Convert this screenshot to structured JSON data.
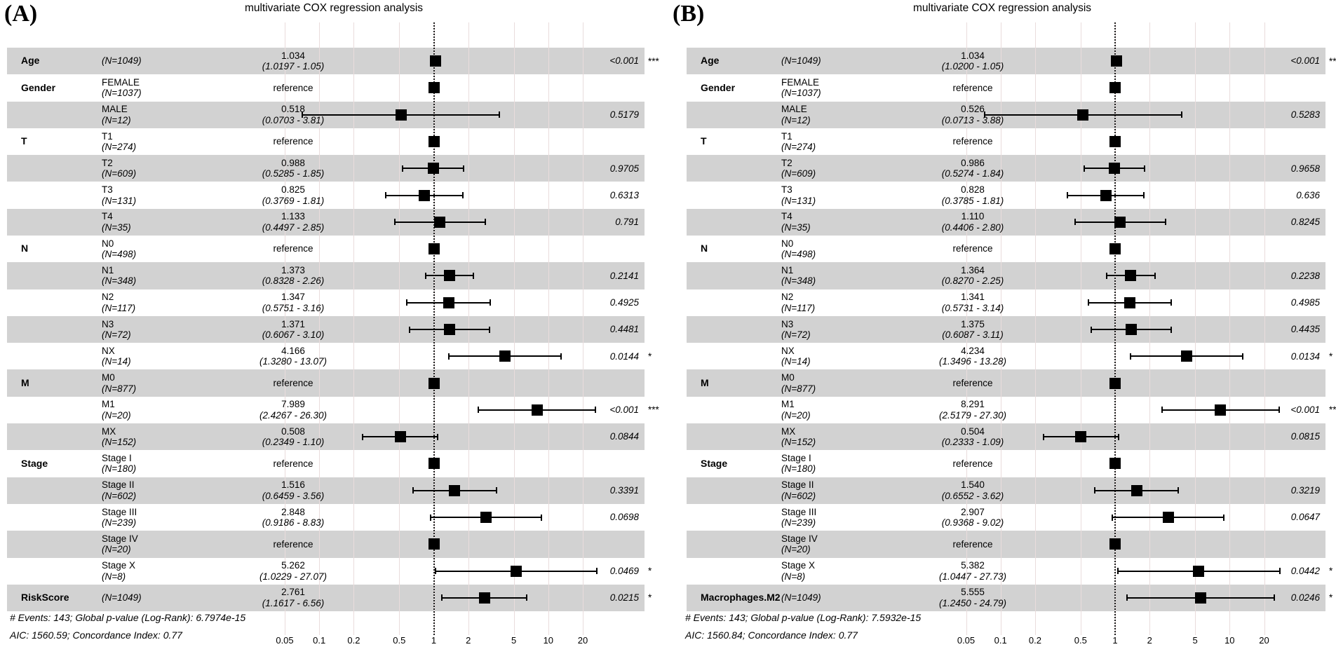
{
  "colors": {
    "row_shade": "#d2d2d2",
    "grid_line": "#e9dcdc",
    "marker": "#000000",
    "reference_line_color": "#1b1b1b",
    "background": "#ffffff",
    "text": "#000000"
  },
  "chart_data": [
    {
      "type": "forest",
      "panel_label": "(A)",
      "title": "multivariate COX regression analysis",
      "x_scale": "log",
      "x_range": [
        0.05,
        20
      ],
      "x_ticks": [
        "0.05",
        "0.1",
        "0.2",
        "0.5",
        "1",
        "2",
        "5",
        "10",
        "20"
      ],
      "reference_line": 1,
      "footer": [
        "# Events: 143; Global p-value (Log-Rank): 6.7974e-15",
        "AIC: 1560.59; Concordance Index: 0.77"
      ],
      "rows": [
        {
          "variable": "Age",
          "level": "",
          "n": "(N=1049)",
          "est_text": "1.034",
          "ci_text": "(1.0197 - 1.05)",
          "est": 1.034,
          "lo": 1.0197,
          "hi": 1.05,
          "p": "<0.001",
          "stars": "***",
          "reference": false,
          "shaded": true
        },
        {
          "variable": "Gender",
          "level": "FEMALE",
          "n": "(N=1037)",
          "est_text": "reference",
          "ci_text": "",
          "est": 1,
          "lo": null,
          "hi": null,
          "p": "",
          "stars": "",
          "reference": true,
          "shaded": false
        },
        {
          "variable": "",
          "level": "MALE",
          "n": "(N=12)",
          "est_text": "0.518",
          "ci_text": "(0.0703 - 3.81)",
          "est": 0.518,
          "lo": 0.0703,
          "hi": 3.81,
          "p": "0.5179",
          "stars": "",
          "reference": false,
          "shaded": true
        },
        {
          "variable": "T",
          "level": "T1",
          "n": "(N=274)",
          "est_text": "reference",
          "ci_text": "",
          "est": 1,
          "lo": null,
          "hi": null,
          "p": "",
          "stars": "",
          "reference": true,
          "shaded": false
        },
        {
          "variable": "",
          "level": "T2",
          "n": "(N=609)",
          "est_text": "0.988",
          "ci_text": "(0.5285 - 1.85)",
          "est": 0.988,
          "lo": 0.5285,
          "hi": 1.85,
          "p": "0.9705",
          "stars": "",
          "reference": false,
          "shaded": true
        },
        {
          "variable": "",
          "level": "T3",
          "n": "(N=131)",
          "est_text": "0.825",
          "ci_text": "(0.3769 - 1.81)",
          "est": 0.825,
          "lo": 0.3769,
          "hi": 1.81,
          "p": "0.6313",
          "stars": "",
          "reference": false,
          "shaded": false
        },
        {
          "variable": "",
          "level": "T4",
          "n": "(N=35)",
          "est_text": "1.133",
          "ci_text": "(0.4497 - 2.85)",
          "est": 1.133,
          "lo": 0.4497,
          "hi": 2.85,
          "p": "0.791",
          "stars": "",
          "reference": false,
          "shaded": true
        },
        {
          "variable": "N",
          "level": "N0",
          "n": "(N=498)",
          "est_text": "reference",
          "ci_text": "",
          "est": 1,
          "lo": null,
          "hi": null,
          "p": "",
          "stars": "",
          "reference": true,
          "shaded": false
        },
        {
          "variable": "",
          "level": "N1",
          "n": "(N=348)",
          "est_text": "1.373",
          "ci_text": "(0.8328 - 2.26)",
          "est": 1.373,
          "lo": 0.8328,
          "hi": 2.26,
          "p": "0.2141",
          "stars": "",
          "reference": false,
          "shaded": true
        },
        {
          "variable": "",
          "level": "N2",
          "n": "(N=117)",
          "est_text": "1.347",
          "ci_text": "(0.5751 - 3.16)",
          "est": 1.347,
          "lo": 0.5751,
          "hi": 3.16,
          "p": "0.4925",
          "stars": "",
          "reference": false,
          "shaded": false
        },
        {
          "variable": "",
          "level": "N3",
          "n": "(N=72)",
          "est_text": "1.371",
          "ci_text": "(0.6067 - 3.10)",
          "est": 1.371,
          "lo": 0.6067,
          "hi": 3.1,
          "p": "0.4481",
          "stars": "",
          "reference": false,
          "shaded": true
        },
        {
          "variable": "",
          "level": "NX",
          "n": "(N=14)",
          "est_text": "4.166",
          "ci_text": "(1.3280 - 13.07)",
          "est": 4.166,
          "lo": 1.328,
          "hi": 13.07,
          "p": "0.0144",
          "stars": "*",
          "reference": false,
          "shaded": false
        },
        {
          "variable": "M",
          "level": "M0",
          "n": "(N=877)",
          "est_text": "reference",
          "ci_text": "",
          "est": 1,
          "lo": null,
          "hi": null,
          "p": "",
          "stars": "",
          "reference": true,
          "shaded": true
        },
        {
          "variable": "",
          "level": "M1",
          "n": "(N=20)",
          "est_text": "7.989",
          "ci_text": "(2.4267 - 26.30)",
          "est": 7.989,
          "lo": 2.4267,
          "hi": 26.3,
          "p": "<0.001",
          "stars": "***",
          "reference": false,
          "shaded": false
        },
        {
          "variable": "",
          "level": "MX",
          "n": "(N=152)",
          "est_text": "0.508",
          "ci_text": "(0.2349 - 1.10)",
          "est": 0.508,
          "lo": 0.2349,
          "hi": 1.1,
          "p": "0.0844",
          "stars": "",
          "reference": false,
          "shaded": true
        },
        {
          "variable": "Stage",
          "level": "Stage I",
          "n": "(N=180)",
          "est_text": "reference",
          "ci_text": "",
          "est": 1,
          "lo": null,
          "hi": null,
          "p": "",
          "stars": "",
          "reference": true,
          "shaded": false
        },
        {
          "variable": "",
          "level": "Stage II",
          "n": "(N=602)",
          "est_text": "1.516",
          "ci_text": "(0.6459 - 3.56)",
          "est": 1.516,
          "lo": 0.6459,
          "hi": 3.56,
          "p": "0.3391",
          "stars": "",
          "reference": false,
          "shaded": true
        },
        {
          "variable": "",
          "level": "Stage III",
          "n": "(N=239)",
          "est_text": "2.848",
          "ci_text": "(0.9186 - 8.83)",
          "est": 2.848,
          "lo": 0.9186,
          "hi": 8.83,
          "p": "0.0698",
          "stars": "",
          "reference": false,
          "shaded": false
        },
        {
          "variable": "",
          "level": "Stage IV",
          "n": "(N=20)",
          "est_text": "reference",
          "ci_text": "",
          "est": 1,
          "lo": null,
          "hi": null,
          "p": "",
          "stars": "",
          "reference": true,
          "shaded": true
        },
        {
          "variable": "",
          "level": "Stage X",
          "n": "(N=8)",
          "est_text": "5.262",
          "ci_text": "(1.0229 - 27.07)",
          "est": 5.262,
          "lo": 1.0229,
          "hi": 27.07,
          "p": "0.0469",
          "stars": "*",
          "reference": false,
          "shaded": false
        },
        {
          "variable": "RiskScore",
          "level": "",
          "n": "(N=1049)",
          "est_text": "2.761",
          "ci_text": "(1.1617 - 6.56)",
          "est": 2.761,
          "lo": 1.1617,
          "hi": 6.56,
          "p": "0.0215",
          "stars": "*",
          "reference": false,
          "shaded": true
        }
      ]
    },
    {
      "type": "forest",
      "panel_label": "(B)",
      "title": "multivariate COX regression analysis",
      "x_scale": "log",
      "x_range": [
        0.05,
        20
      ],
      "x_ticks": [
        "0.05",
        "0.1",
        "0.2",
        "0.5",
        "1",
        "2",
        "5",
        "10",
        "20"
      ],
      "reference_line": 1,
      "footer": [
        "# Events: 143; Global p-value (Log-Rank): 7.5932e-15",
        "AIC: 1560.84; Concordance Index: 0.77"
      ],
      "rows": [
        {
          "variable": "Age",
          "level": "",
          "n": "(N=1049)",
          "est_text": "1.034",
          "ci_text": "(1.0200 - 1.05)",
          "est": 1.034,
          "lo": 1.02,
          "hi": 1.05,
          "p": "<0.001",
          "stars": "***",
          "reference": false,
          "shaded": true
        },
        {
          "variable": "Gender",
          "level": "FEMALE",
          "n": "(N=1037)",
          "est_text": "reference",
          "ci_text": "",
          "est": 1,
          "lo": null,
          "hi": null,
          "p": "",
          "stars": "",
          "reference": true,
          "shaded": false
        },
        {
          "variable": "",
          "level": "MALE",
          "n": "(N=12)",
          "est_text": "0.526",
          "ci_text": "(0.0713 - 3.88)",
          "est": 0.526,
          "lo": 0.0713,
          "hi": 3.88,
          "p": "0.5283",
          "stars": "",
          "reference": false,
          "shaded": true
        },
        {
          "variable": "T",
          "level": "T1",
          "n": "(N=274)",
          "est_text": "reference",
          "ci_text": "",
          "est": 1,
          "lo": null,
          "hi": null,
          "p": "",
          "stars": "",
          "reference": true,
          "shaded": false
        },
        {
          "variable": "",
          "level": "T2",
          "n": "(N=609)",
          "est_text": "0.986",
          "ci_text": "(0.5274 - 1.84)",
          "est": 0.986,
          "lo": 0.5274,
          "hi": 1.84,
          "p": "0.9658",
          "stars": "",
          "reference": false,
          "shaded": true
        },
        {
          "variable": "",
          "level": "T3",
          "n": "(N=131)",
          "est_text": "0.828",
          "ci_text": "(0.3785 - 1.81)",
          "est": 0.828,
          "lo": 0.3785,
          "hi": 1.81,
          "p": "0.636",
          "stars": "",
          "reference": false,
          "shaded": false
        },
        {
          "variable": "",
          "level": "T4",
          "n": "(N=35)",
          "est_text": "1.110",
          "ci_text": "(0.4406 - 2.80)",
          "est": 1.11,
          "lo": 0.4406,
          "hi": 2.8,
          "p": "0.8245",
          "stars": "",
          "reference": false,
          "shaded": true
        },
        {
          "variable": "N",
          "level": "N0",
          "n": "(N=498)",
          "est_text": "reference",
          "ci_text": "",
          "est": 1,
          "lo": null,
          "hi": null,
          "p": "",
          "stars": "",
          "reference": true,
          "shaded": false
        },
        {
          "variable": "",
          "level": "N1",
          "n": "(N=348)",
          "est_text": "1.364",
          "ci_text": "(0.8270 - 2.25)",
          "est": 1.364,
          "lo": 0.827,
          "hi": 2.25,
          "p": "0.2238",
          "stars": "",
          "reference": false,
          "shaded": true
        },
        {
          "variable": "",
          "level": "N2",
          "n": "(N=117)",
          "est_text": "1.341",
          "ci_text": "(0.5731 - 3.14)",
          "est": 1.341,
          "lo": 0.5731,
          "hi": 3.14,
          "p": "0.4985",
          "stars": "",
          "reference": false,
          "shaded": false
        },
        {
          "variable": "",
          "level": "N3",
          "n": "(N=72)",
          "est_text": "1.375",
          "ci_text": "(0.6087 - 3.11)",
          "est": 1.375,
          "lo": 0.6087,
          "hi": 3.11,
          "p": "0.4435",
          "stars": "",
          "reference": false,
          "shaded": true
        },
        {
          "variable": "",
          "level": "NX",
          "n": "(N=14)",
          "est_text": "4.234",
          "ci_text": "(1.3496 - 13.28)",
          "est": 4.234,
          "lo": 1.3496,
          "hi": 13.28,
          "p": "0.0134",
          "stars": "*",
          "reference": false,
          "shaded": false
        },
        {
          "variable": "M",
          "level": "M0",
          "n": "(N=877)",
          "est_text": "reference",
          "ci_text": "",
          "est": 1,
          "lo": null,
          "hi": null,
          "p": "",
          "stars": "",
          "reference": true,
          "shaded": true
        },
        {
          "variable": "",
          "level": "M1",
          "n": "(N=20)",
          "est_text": "8.291",
          "ci_text": "(2.5179 - 27.30)",
          "est": 8.291,
          "lo": 2.5179,
          "hi": 27.3,
          "p": "<0.001",
          "stars": "***",
          "reference": false,
          "shaded": false
        },
        {
          "variable": "",
          "level": "MX",
          "n": "(N=152)",
          "est_text": "0.504",
          "ci_text": "(0.2333 - 1.09)",
          "est": 0.504,
          "lo": 0.2333,
          "hi": 1.09,
          "p": "0.0815",
          "stars": "",
          "reference": false,
          "shaded": true
        },
        {
          "variable": "Stage",
          "level": "Stage I",
          "n": "(N=180)",
          "est_text": "reference",
          "ci_text": "",
          "est": 1,
          "lo": null,
          "hi": null,
          "p": "",
          "stars": "",
          "reference": true,
          "shaded": false
        },
        {
          "variable": "",
          "level": "Stage II",
          "n": "(N=602)",
          "est_text": "1.540",
          "ci_text": "(0.6552 - 3.62)",
          "est": 1.54,
          "lo": 0.6552,
          "hi": 3.62,
          "p": "0.3219",
          "stars": "",
          "reference": false,
          "shaded": true
        },
        {
          "variable": "",
          "level": "Stage III",
          "n": "(N=239)",
          "est_text": "2.907",
          "ci_text": "(0.9368 - 9.02)",
          "est": 2.907,
          "lo": 0.9368,
          "hi": 9.02,
          "p": "0.0647",
          "stars": "",
          "reference": false,
          "shaded": false
        },
        {
          "variable": "",
          "level": "Stage IV",
          "n": "(N=20)",
          "est_text": "reference",
          "ci_text": "",
          "est": 1,
          "lo": null,
          "hi": null,
          "p": "",
          "stars": "",
          "reference": true,
          "shaded": true
        },
        {
          "variable": "",
          "level": "Stage X",
          "n": "(N=8)",
          "est_text": "5.382",
          "ci_text": "(1.0447 - 27.73)",
          "est": 5.382,
          "lo": 1.0447,
          "hi": 27.73,
          "p": "0.0442",
          "stars": "*",
          "reference": false,
          "shaded": false
        },
        {
          "variable": "Macrophages.M2",
          "level": "",
          "n": "(N=1049)",
          "est_text": "5.555",
          "ci_text": "(1.2450 - 24.79)",
          "est": 5.555,
          "lo": 1.245,
          "hi": 24.79,
          "p": "0.0246",
          "stars": "*",
          "reference": false,
          "shaded": true
        }
      ]
    }
  ]
}
